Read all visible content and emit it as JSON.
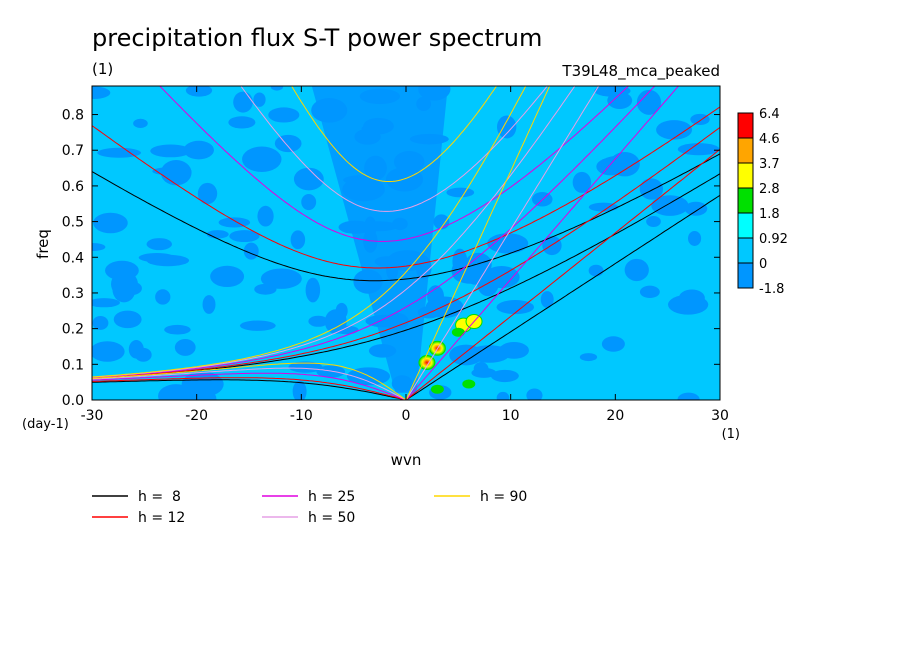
{
  "chart_data": {
    "type": "heatmap",
    "title": "precipitation flux S-T power spectrum",
    "subtitle_left": "(1)",
    "subtitle_right": "T39L48_mca_peaked",
    "xlabel": "wvn",
    "ylabel": "freq",
    "x_unit": "(1)",
    "y_unit": "(day-1)",
    "xlim": [
      -30,
      30
    ],
    "ylim": [
      0,
      0.88
    ],
    "x_ticks": [
      -30,
      -20,
      -10,
      0,
      10,
      20,
      30
    ],
    "x_tick_labels": [
      "-30",
      "-20",
      "-10",
      "0",
      "10",
      "20",
      "30"
    ],
    "y_ticks": [
      0.0,
      0.1,
      0.2,
      0.3,
      0.4,
      0.5,
      0.6,
      0.7,
      0.8
    ],
    "y_tick_labels": [
      "0.0",
      "0.1",
      "0.2",
      "0.3",
      "0.4",
      "0.5",
      "0.6",
      "0.7",
      "0.8"
    ],
    "colorbar": {
      "levels": [
        "6.4",
        "4.6",
        "3.7",
        "2.8",
        "1.8",
        "0.92",
        "0",
        "-1.8"
      ],
      "colors": [
        "#ff0000",
        "#ffa500",
        "#ffff00",
        "#00e000",
        "#00ffff",
        "#00c8ff",
        "#0096ff"
      ]
    },
    "field_colors": {
      "background": "#00c8ff",
      "low": "#0096ff",
      "mid": "#00e000",
      "high": "#ffff00",
      "peak": "#ff0000"
    },
    "peaks": [
      {
        "x": 2.0,
        "y": 0.105,
        "level": "peak"
      },
      {
        "x": 3.0,
        "y": 0.145,
        "level": "peak"
      },
      {
        "x": 5.5,
        "y": 0.21,
        "level": "high"
      },
      {
        "x": 6.5,
        "y": 0.22,
        "level": "high"
      },
      {
        "x": 3.0,
        "y": 0.03,
        "level": "mid"
      },
      {
        "x": 6.0,
        "y": 0.045,
        "level": "mid"
      },
      {
        "x": 5.0,
        "y": 0.19,
        "level": "mid"
      }
    ],
    "series": [
      {
        "name": "h =  8",
        "color": "#000000",
        "equivalent_depth": 8
      },
      {
        "name": "h = 12",
        "color": "#ff0000",
        "equivalent_depth": 12
      },
      {
        "name": "h = 25",
        "color": "#e000e0",
        "equivalent_depth": 25
      },
      {
        "name": "h = 50",
        "color": "#e6a0e6",
        "equivalent_depth": 50
      },
      {
        "name": "h = 90",
        "color": "#ffd700",
        "equivalent_depth": 90
      }
    ],
    "legend_placement": "bottom-left"
  }
}
